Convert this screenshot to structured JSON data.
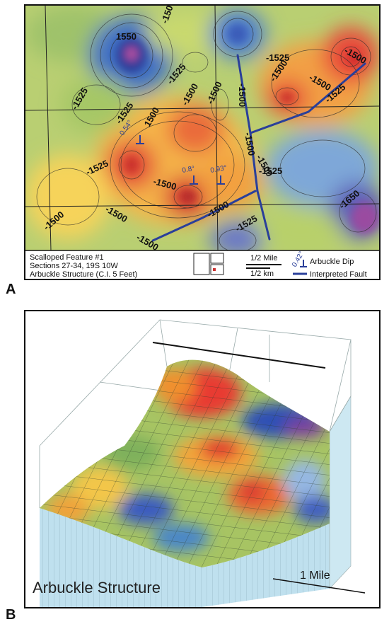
{
  "panel_a": {
    "letter": "A",
    "contour_labels": [
      "1550",
      "-1525",
      "-1500",
      "-1525",
      "-1525",
      "-1500",
      "-1500",
      "1500",
      "-1500",
      "-1500",
      "-1500",
      "-1525",
      "-1500",
      "-1525",
      "-1525",
      "-1500",
      "-1500",
      "-1500",
      "-1525",
      "-1500",
      "-1525",
      "-1500",
      "-1500",
      "-1500",
      "-1650"
    ],
    "dip_values": [
      "0.54°",
      "0.8°",
      "0.93°"
    ],
    "legend": {
      "title_line1": "Scalloped Feature #1",
      "title_line2": "Sections 27-34, 19S 10W",
      "title_line3": "Arbuckle Structure (C.I. 5 Feet)",
      "scale_mile": "1/2 Mile",
      "scale_km": "1/2 km",
      "dip_sample_value": "0.42°",
      "dip_label": "Arbuckle Dip",
      "fault_label": "Interpreted Fault"
    }
  },
  "panel_b": {
    "letter": "B",
    "title": "Arbuckle Structure",
    "scale_label": "1 Mile"
  }
}
